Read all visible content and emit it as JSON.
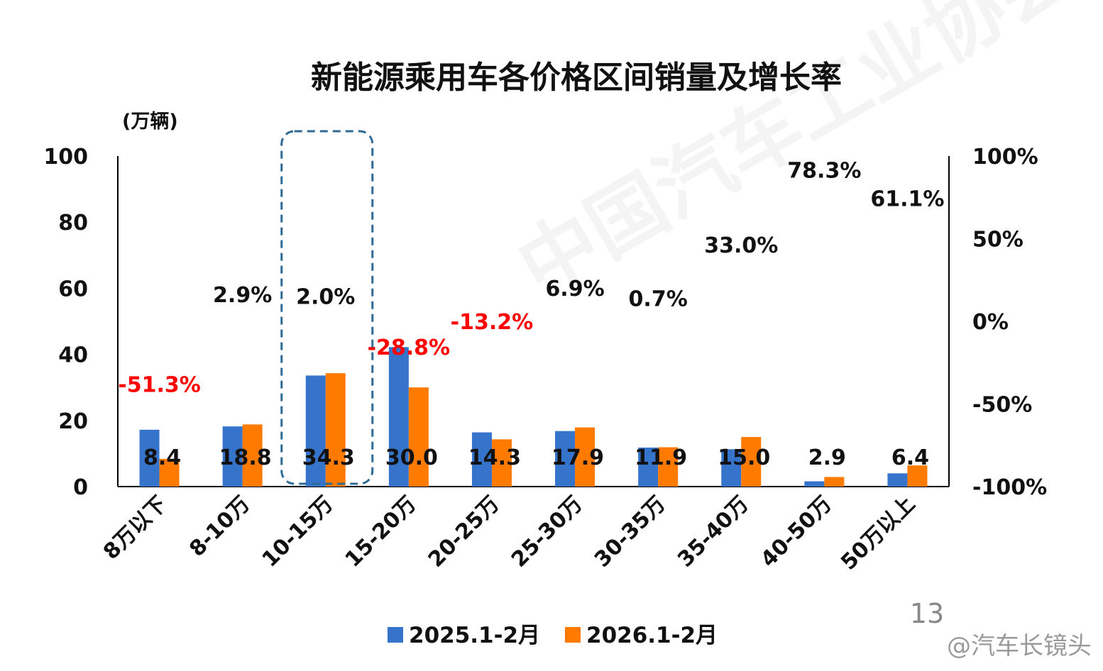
{
  "colors": {
    "series_2025": "#3674cc",
    "series_2026": "#ff7a00",
    "negative_growth": "#ff0000",
    "positive_growth": "#111111",
    "highlight_box": "#2e6b96"
  },
  "page_number": "13",
  "watermark": "@汽车长镜头",
  "chart_data": {
    "type": "bar",
    "title": "新能源乘用车各价格区间销量及增长率",
    "ylabel": "(万辆)",
    "ylim": [
      0,
      100
    ],
    "yticks": [
      "0",
      "20",
      "40",
      "60",
      "80",
      "100"
    ],
    "y2lim": [
      -100,
      100
    ],
    "y2ticks": [
      "-100%",
      "-50%",
      "0%",
      "50%",
      "100%"
    ],
    "grid": false,
    "legend_position": "bottom",
    "categories": [
      "8万以下",
      "8-10万",
      "10-15万",
      "15-20万",
      "20-25万",
      "25-30万",
      "30-35万",
      "35-40万",
      "40-50万",
      "50万以上"
    ],
    "series": [
      {
        "name": "2025.1-2月",
        "values": [
          17.2,
          18.2,
          33.6,
          42.2,
          16.4,
          16.8,
          11.8,
          11.3,
          1.6,
          4.0
        ]
      },
      {
        "name": "2026.1-2月",
        "values": [
          8.4,
          18.8,
          34.3,
          30.0,
          14.3,
          17.9,
          11.9,
          15.0,
          2.9,
          6.4
        ]
      }
    ],
    "value_labels": [
      "8.4",
      "18.8",
      "34.3",
      "30.0",
      "14.3",
      "17.9",
      "11.9",
      "15.0",
      "2.9",
      "6.4"
    ],
    "growth_rate": {
      "values": [
        -51.3,
        2.9,
        2.0,
        -28.8,
        -13.2,
        6.9,
        0.7,
        33.0,
        78.3,
        61.1
      ],
      "labels": [
        "-51.3%",
        "2.9%",
        "2.0%",
        "-28.8%",
        "-13.2%",
        "6.9%",
        "0.7%",
        "33.0%",
        "78.3%",
        "61.1%"
      ]
    },
    "highlight_category": "10-15万"
  }
}
